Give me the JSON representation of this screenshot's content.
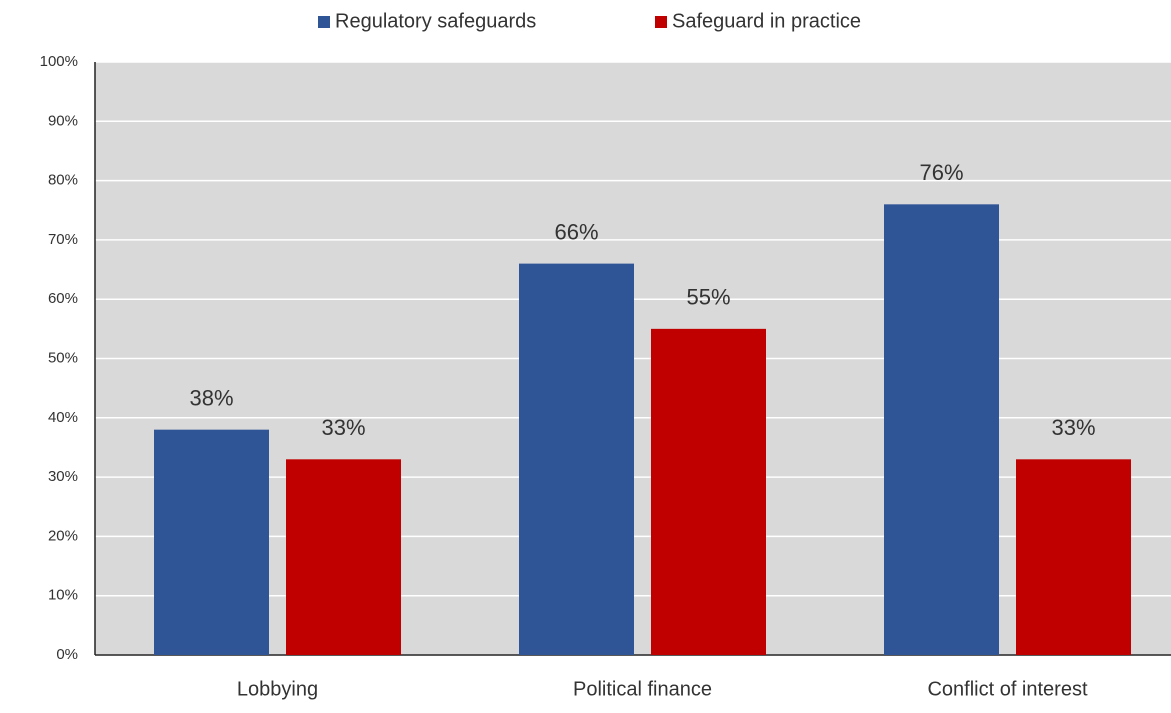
{
  "chart_data": {
    "type": "bar",
    "categories": [
      "Lobbying",
      "Political finance",
      "Conflict of interest"
    ],
    "series": [
      {
        "name": "Regulatory safeguards",
        "color": "#2f5597",
        "values": [
          38,
          66,
          76
        ],
        "value_labels": [
          "38%",
          "66%",
          "76%"
        ]
      },
      {
        "name": "Safeguard in practice",
        "color": "#c00000",
        "values": [
          33,
          55,
          33
        ],
        "value_labels": [
          "33%",
          "55%",
          "33%"
        ]
      }
    ],
    "ylim": [
      0,
      100
    ],
    "yticks": [
      {
        "value": 0,
        "label": "0%"
      },
      {
        "value": 10,
        "label": "10%"
      },
      {
        "value": 20,
        "label": "20%"
      },
      {
        "value": 30,
        "label": "30%"
      },
      {
        "value": 40,
        "label": "40%"
      },
      {
        "value": 50,
        "label": "50%"
      },
      {
        "value": 60,
        "label": "60%"
      },
      {
        "value": 70,
        "label": "70%"
      },
      {
        "value": 80,
        "label": "80%"
      },
      {
        "value": 90,
        "label": "90%"
      },
      {
        "value": 100,
        "label": "100%"
      }
    ],
    "grid": true,
    "legend": "top"
  }
}
